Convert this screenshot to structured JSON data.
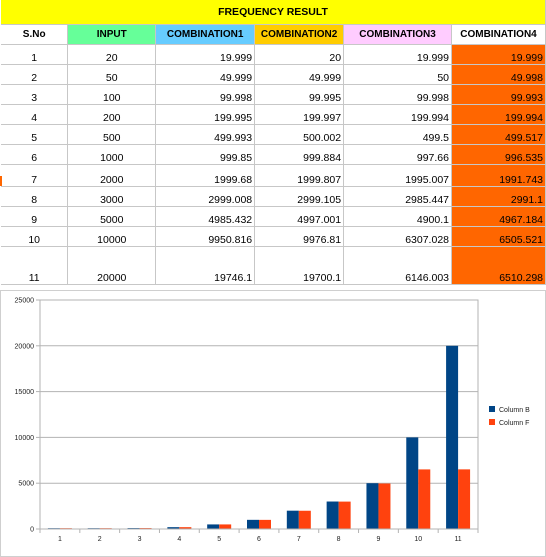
{
  "sheet": {
    "title": "FREQUENCY RESULT",
    "headers": [
      "S.No",
      "INPUT",
      "COMBINATION1",
      "COMBINATION2",
      "COMBINATION3",
      "COMBINATION4"
    ],
    "header_colors": [
      "#ffffff",
      "#66ff99",
      "#66ccff",
      "#ffcc00",
      "#ffccff",
      "#ffffff"
    ],
    "rows": [
      [
        "1",
        "20",
        "19.999",
        "20",
        "19.999",
        "19.999"
      ],
      [
        "2",
        "50",
        "49.999",
        "49.999",
        "50",
        "49.998"
      ],
      [
        "3",
        "100",
        "99.998",
        "99.995",
        "99.998",
        "99.993"
      ],
      [
        "4",
        "200",
        "199.995",
        "199.997",
        "199.994",
        "199.994"
      ],
      [
        "5",
        "500",
        "499.993",
        "500.002",
        "499.5",
        "499.517"
      ],
      [
        "6",
        "1000",
        "999.85",
        "999.884",
        "997.66",
        "996.535"
      ],
      [
        "7",
        "2000",
        "1999.68",
        "1999.807",
        "1995.007",
        "1991.743"
      ],
      [
        "8",
        "3000",
        "2999.008",
        "2999.105",
        "2985.447",
        "2991.1"
      ],
      [
        "9",
        "5000",
        "4985.432",
        "4997.001",
        "4900.1",
        "4967.184"
      ],
      [
        "10",
        "10000",
        "9950.816",
        "9976.81",
        "6307.028",
        "6505.521"
      ],
      [
        "11",
        "20000",
        "19746.1",
        "19700.1",
        "6146.003",
        "6510.298"
      ]
    ],
    "highlight_color": "#ff6600"
  },
  "chart_data": {
    "type": "bar",
    "categories": [
      "1",
      "2",
      "3",
      "4",
      "5",
      "6",
      "7",
      "8",
      "9",
      "10",
      "11"
    ],
    "series": [
      {
        "name": "Column B",
        "color": "#004586",
        "values": [
          20,
          50,
          100,
          200,
          500,
          1000,
          2000,
          3000,
          5000,
          10000,
          20000
        ]
      },
      {
        "name": "Column F",
        "color": "#ff420e",
        "values": [
          19.999,
          49.998,
          99.993,
          199.994,
          499.517,
          996.535,
          1991.743,
          2991.1,
          4967.184,
          6505.521,
          6510.298
        ]
      }
    ],
    "ylim": [
      0,
      25000
    ],
    "yticks": [
      "0",
      "5000",
      "10000",
      "15000",
      "20000",
      "25000"
    ],
    "grid": true,
    "legend": "right"
  }
}
